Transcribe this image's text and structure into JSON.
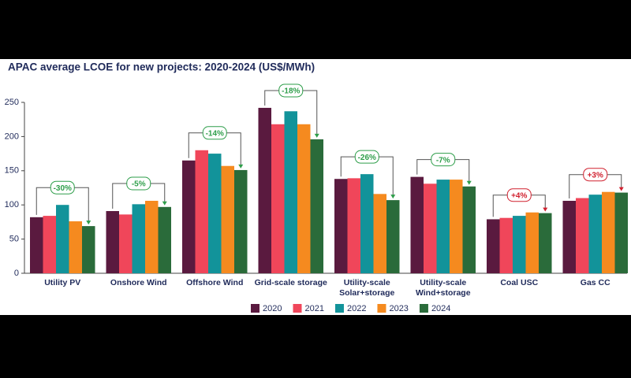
{
  "chart_data": {
    "type": "bar",
    "title": "APAC average LCOE for new projects: 2020-2024 (US$/MWh)",
    "categories": [
      "Utility PV",
      "Onshore Wind",
      "Offshore Wind",
      "Grid-scale storage",
      "Utility-scale\nSolar+storage",
      "Utility-scale\nWind+storage",
      "Coal USC",
      "Gas CC"
    ],
    "series": [
      {
        "name": "2020",
        "color": "#5a1a3f",
        "values": [
          82,
          91,
          165,
          242,
          138,
          141,
          79,
          106
        ]
      },
      {
        "name": "2021",
        "color": "#f0465a",
        "values": [
          84,
          86,
          180,
          218,
          139,
          131,
          81,
          110
        ]
      },
      {
        "name": "2022",
        "color": "#12939a",
        "values": [
          100,
          101,
          175,
          237,
          145,
          137,
          84,
          115
        ]
      },
      {
        "name": "2023",
        "color": "#f58a1f",
        "values": [
          76,
          106,
          157,
          218,
          116,
          137,
          89,
          119
        ]
      },
      {
        "name": "2024",
        "color": "#2a6b3a",
        "values": [
          69,
          97,
          151,
          196,
          107,
          127,
          88,
          118
        ]
      }
    ],
    "annotations": [
      {
        "text": "-30%",
        "color": "#2e9e4a"
      },
      {
        "text": "-5%",
        "color": "#2e9e4a"
      },
      {
        "text": "-14%",
        "color": "#2e9e4a"
      },
      {
        "text": "-18%",
        "color": "#2e9e4a"
      },
      {
        "text": "-26%",
        "color": "#2e9e4a"
      },
      {
        "text": "-7%",
        "color": "#2e9e4a"
      },
      {
        "text": "+4%",
        "color": "#d0202e"
      },
      {
        "text": "+3%",
        "color": "#d0202e"
      }
    ],
    "ylim": [
      0,
      250
    ],
    "yticks": [
      0,
      50,
      100,
      150,
      200,
      250
    ],
    "grid": false
  }
}
